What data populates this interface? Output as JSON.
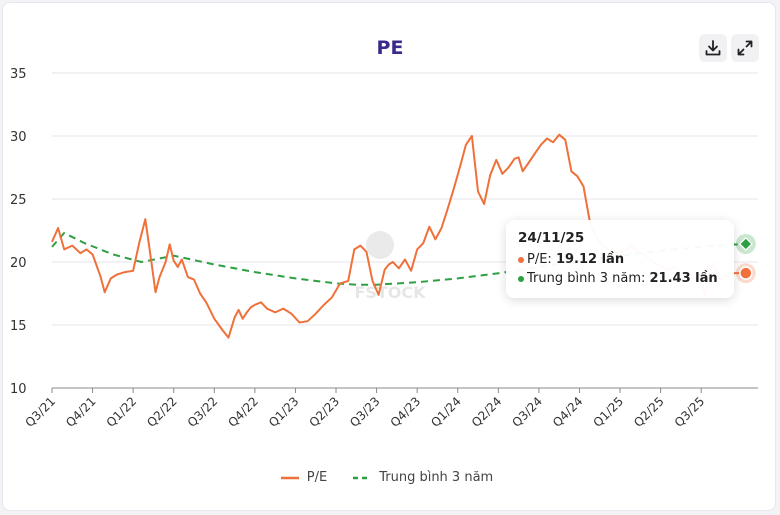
{
  "header": {
    "title": "PE",
    "download_icon": "download-icon",
    "expand_icon": "expand-icon"
  },
  "colors": {
    "pe_line": "#f0703a",
    "avg_line": "#2ea043",
    "grid": "#e6e6ea",
    "title": "#3b2a8c"
  },
  "tooltip": {
    "date": "24/11/25",
    "pe_label": "P/E: ",
    "pe_value": "19.12 lần",
    "avg_label": "Trung bình 3 năm: ",
    "avg_value": "21.43 lần"
  },
  "legend": {
    "pe": "P/E",
    "avg": "Trung bình 3 năm"
  },
  "chart_data": {
    "type": "line",
    "title": "PE",
    "ylim": [
      10,
      35
    ],
    "yticks": [
      10,
      15,
      20,
      25,
      30,
      35
    ],
    "x_tick_labels": [
      "Q3/21",
      "Q4/21",
      "Q1/22",
      "Q2/22",
      "Q3/22",
      "Q4/22",
      "Q1/23",
      "Q2/23",
      "Q3/23",
      "Q4/23",
      "Q1/24",
      "Q2/24",
      "Q3/24",
      "Q4/24",
      "Q1/25",
      "Q2/25",
      "Q3/25"
    ],
    "x_range": [
      0,
      17.4
    ],
    "grid": true,
    "legend_position": "bottom",
    "series": [
      {
        "name": "P/E",
        "x": [
          0.0,
          0.15,
          0.3,
          0.5,
          0.7,
          0.85,
          1.0,
          1.2,
          1.3,
          1.45,
          1.6,
          1.8,
          2.0,
          2.15,
          2.3,
          2.45,
          2.55,
          2.65,
          2.8,
          2.9,
          3.0,
          3.1,
          3.2,
          3.35,
          3.5,
          3.65,
          3.8,
          4.0,
          4.2,
          4.35,
          4.5,
          4.6,
          4.7,
          4.8,
          4.9,
          5.0,
          5.15,
          5.3,
          5.5,
          5.7,
          5.9,
          6.1,
          6.3,
          6.5,
          6.7,
          6.9,
          7.1,
          7.3,
          7.45,
          7.6,
          7.75,
          7.9,
          8.05,
          8.2,
          8.3,
          8.4,
          8.55,
          8.7,
          8.85,
          9.0,
          9.15,
          9.3,
          9.45,
          9.6,
          9.75,
          9.9,
          10.05,
          10.2,
          10.35,
          10.5,
          10.65,
          10.8,
          10.95,
          11.1,
          11.25,
          11.4,
          11.5,
          11.6,
          11.75,
          11.9,
          12.05,
          12.2,
          12.35,
          12.5,
          12.65,
          12.8,
          12.95,
          13.1,
          13.25,
          13.4,
          13.55,
          13.7,
          13.85,
          14.0,
          14.15,
          14.3,
          14.45,
          14.6,
          14.75,
          14.9,
          15.05,
          15.2,
          15.35,
          15.5,
          15.65,
          15.8,
          15.95,
          16.1,
          16.2,
          16.3,
          16.45,
          16.6,
          16.75,
          16.9,
          17.0,
          17.1
        ],
        "y": [
          21.6,
          22.7,
          21.0,
          21.3,
          20.7,
          21.0,
          20.6,
          18.8,
          17.6,
          18.7,
          19.0,
          19.2,
          19.3,
          21.5,
          23.4,
          20.0,
          17.6,
          18.8,
          20.0,
          21.4,
          20.1,
          19.6,
          20.2,
          18.8,
          18.6,
          17.5,
          16.8,
          15.5,
          14.6,
          14.0,
          15.6,
          16.2,
          15.5,
          16.0,
          16.4,
          16.6,
          16.8,
          16.3,
          16.0,
          16.3,
          15.9,
          15.2,
          15.3,
          15.9,
          16.6,
          17.2,
          18.3,
          18.5,
          21.0,
          21.3,
          20.8,
          18.5,
          17.4,
          19.4,
          19.8,
          20.0,
          19.5,
          20.2,
          19.3,
          21.0,
          21.5,
          22.8,
          21.8,
          22.7,
          24.2,
          25.8,
          27.5,
          29.3,
          30.0,
          25.6,
          24.6,
          26.9,
          28.1,
          27.0,
          27.5,
          28.2,
          28.3,
          27.2,
          27.9,
          28.6,
          29.3,
          29.8,
          29.5,
          30.1,
          29.7,
          27.2,
          26.8,
          26.0,
          23.3,
          22.0,
          21.4,
          21.0,
          20.6,
          20.8,
          21.0,
          21.3,
          20.8,
          20.6,
          20.2,
          19.8,
          19.6,
          19.4,
          19.6,
          19.2,
          18.8,
          18.6,
          19.0,
          17.3,
          18.8,
          19.9,
          18.6,
          18.9,
          19.1,
          19.12,
          19.12,
          19.12
        ]
      },
      {
        "name": "Trung bình 3 năm",
        "x": [
          0.0,
          0.3,
          0.8,
          1.5,
          2.2,
          3.0,
          4.0,
          5.0,
          6.0,
          7.0,
          7.5,
          8.0,
          9.0,
          10.0,
          11.0,
          12.0,
          13.0,
          14.0,
          15.0,
          16.0,
          16.6,
          17.1
        ],
        "y": [
          21.2,
          22.3,
          21.5,
          20.6,
          20.0,
          20.5,
          19.8,
          19.2,
          18.7,
          18.3,
          18.2,
          18.2,
          18.4,
          18.7,
          19.1,
          19.6,
          20.1,
          20.5,
          20.9,
          21.2,
          21.35,
          21.43
        ]
      }
    ]
  }
}
